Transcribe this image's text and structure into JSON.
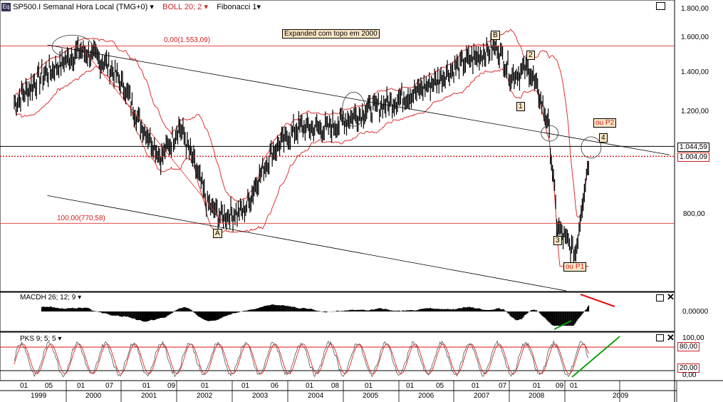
{
  "header": {
    "symbol_icon": "Eq",
    "symbol": "SP500.I Semanal Hora Local (TMG+0)",
    "indicator1": "BOLL 20; 2",
    "indicator2": "Fibonacci 1"
  },
  "annotation_note": "Expanded com topo em 2000",
  "fib_top_label": "0,00(1.553,09)",
  "fib_bottom_label": "100,00(770,58)",
  "wave_labels": [
    "A",
    "B",
    "1",
    "2",
    "3",
    "4"
  ],
  "alt_labels": [
    "ou P1",
    "ou P2"
  ],
  "price_axis": {
    "ticks": [
      "1.800,00",
      "1.600,00",
      "1.400,00",
      "1.200,00",
      "800,00"
    ],
    "highlight_upper": "1.044,59",
    "highlight_lower": "1.004,09"
  },
  "macd_panel": {
    "title": "MACDH 26; 12; 9",
    "tick": "0,00000"
  },
  "pks_panel": {
    "title": "PKS 9; 5; 5",
    "ticks": [
      "100,00",
      "80,00",
      "20,00",
      "0,00"
    ]
  },
  "time_axis": {
    "months": [
      "01",
      "05",
      "01",
      "07",
      "01",
      "09",
      "01",
      "01",
      "06",
      "01",
      "08",
      "01",
      "01",
      "05",
      "01",
      "07",
      "01",
      "09",
      "01"
    ],
    "years": [
      "1999",
      "2000",
      "2001",
      "2002",
      "2003",
      "2004",
      "2005",
      "2006",
      "2007",
      "2008",
      "2009"
    ]
  },
  "colors": {
    "candles": "#000000",
    "bollinger": "#e03030",
    "fib": "#e03030",
    "trend": "#000000",
    "green_trend": "#10a010",
    "red_trend": "#e01010"
  },
  "chart_data": {
    "type": "candlestick",
    "series_name": "SP500.I",
    "frequency": "weekly",
    "x_range": [
      "1999-01",
      "2009-06"
    ],
    "y_range": [
      620,
      1850
    ],
    "close_series": [
      {
        "date": "1999-01",
        "value": 1240
      },
      {
        "date": "1999-07",
        "value": 1380
      },
      {
        "date": "1999-12",
        "value": 1460
      },
      {
        "date": "2000-03",
        "value": 1530
      },
      {
        "date": "2000-09",
        "value": 1450
      },
      {
        "date": "2001-01",
        "value": 1320
      },
      {
        "date": "2001-04",
        "value": 1160
      },
      {
        "date": "2001-09",
        "value": 1000
      },
      {
        "date": "2002-01",
        "value": 1130
      },
      {
        "date": "2002-07",
        "value": 830
      },
      {
        "date": "2002-10",
        "value": 790
      },
      {
        "date": "2003-03",
        "value": 810
      },
      {
        "date": "2003-09",
        "value": 1020
      },
      {
        "date": "2004-03",
        "value": 1130
      },
      {
        "date": "2004-09",
        "value": 1120
      },
      {
        "date": "2005-03",
        "value": 1180
      },
      {
        "date": "2005-09",
        "value": 1230
      },
      {
        "date": "2006-05",
        "value": 1300
      },
      {
        "date": "2007-02",
        "value": 1440
      },
      {
        "date": "2007-10",
        "value": 1553
      },
      {
        "date": "2008-01",
        "value": 1380
      },
      {
        "date": "2008-05",
        "value": 1420
      },
      {
        "date": "2008-09",
        "value": 1150
      },
      {
        "date": "2008-11",
        "value": 760
      },
      {
        "date": "2009-03",
        "value": 680
      },
      {
        "date": "2009-06",
        "value": 1004
      }
    ],
    "fib_levels": [
      {
        "label": "0,00",
        "value": 1553.09
      },
      {
        "label": "100,00",
        "value": 770.58
      }
    ],
    "horizontal_levels": [
      1044.59,
      1004.09
    ]
  }
}
